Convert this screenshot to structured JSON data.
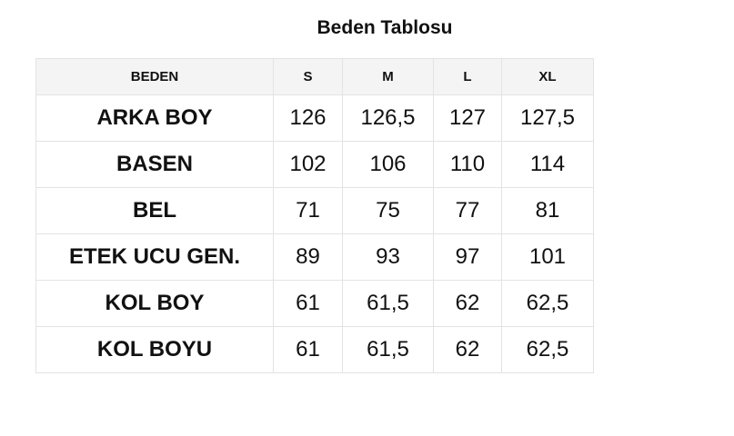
{
  "title": "Beden Tablosu",
  "table": {
    "headers": [
      "BEDEN",
      "S",
      "M",
      "L",
      "XL"
    ],
    "rows": [
      [
        "ARKA BOY",
        "126",
        "126,5",
        "127",
        "127,5"
      ],
      [
        "BASEN",
        "102",
        "106",
        "110",
        "114"
      ],
      [
        "BEL",
        "71",
        "75",
        "77",
        "81"
      ],
      [
        "ETEK UCU GEN.",
        "89",
        "93",
        "97",
        "101"
      ],
      [
        "KOL BOY",
        "61",
        "61,5",
        "62",
        "62,5"
      ],
      [
        "KOL BOYU",
        "61",
        "61,5",
        "62",
        "62,5"
      ]
    ]
  },
  "colors": {
    "header_bg": "#f4f4f4",
    "border": "#e3e3e3"
  }
}
